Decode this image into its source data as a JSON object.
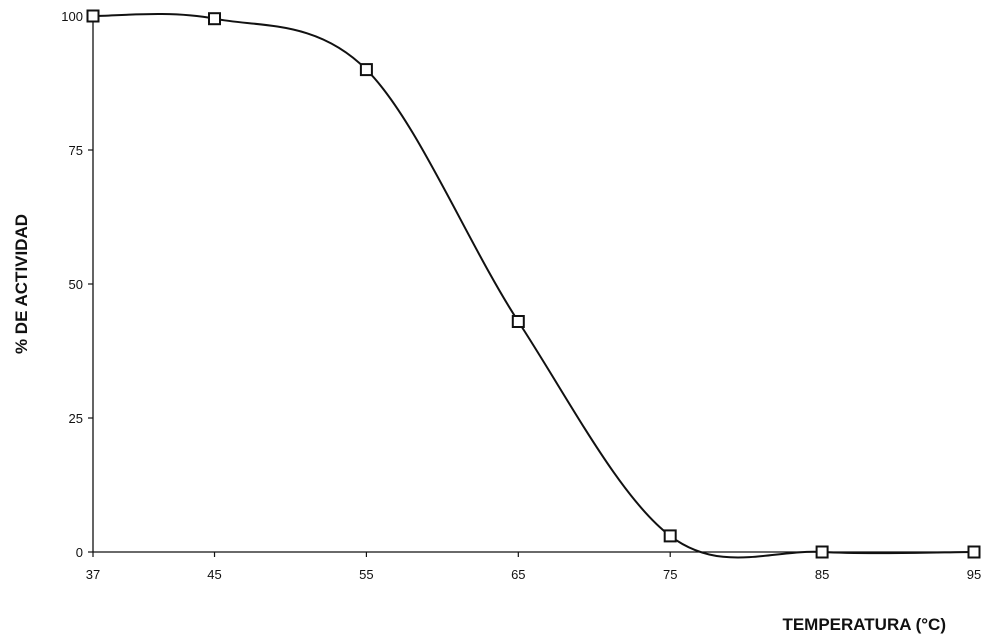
{
  "chart_data": {
    "type": "line",
    "title": "",
    "xlabel": "TEMPERATURA (°C)",
    "ylabel": "% DE ACTIVIDAD",
    "x_ticks": [
      37,
      45,
      55,
      65,
      75,
      85,
      95
    ],
    "y_ticks": [
      0,
      25,
      50,
      75,
      100
    ],
    "xlim": [
      37,
      95
    ],
    "ylim": [
      0,
      100
    ],
    "grid": false,
    "legend": "none",
    "marker": "square",
    "line_style": "smooth",
    "color": "#111111",
    "series": [
      {
        "x": [
          37,
          45,
          55,
          65,
          75,
          85,
          95
        ],
        "y": [
          100,
          99.5,
          90,
          43,
          3,
          0,
          0
        ]
      }
    ]
  }
}
